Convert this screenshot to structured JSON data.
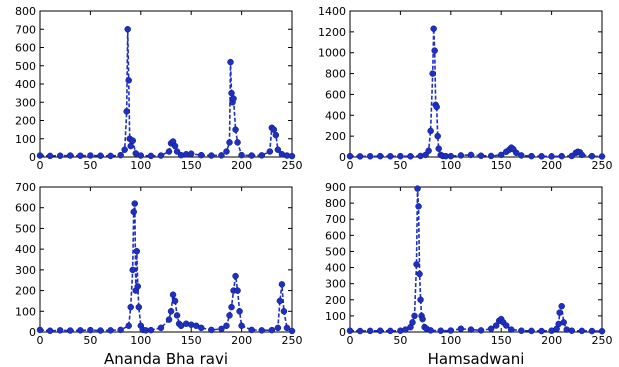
{
  "chart_data": [
    {
      "type": "line",
      "title": "",
      "xlabel": "",
      "ylabel": "",
      "xlim": [
        0,
        250
      ],
      "ylim": [
        0,
        800
      ],
      "xticks": [
        "0",
        "50",
        "100",
        "150",
        "200",
        "250"
      ],
      "yticks": [
        "0",
        "100",
        "200",
        "300",
        "400",
        "500",
        "600",
        "700",
        "800"
      ],
      "color": "#1f2fbf",
      "line_style": "dashed",
      "marker": "circle",
      "grid": false,
      "x": [
        0,
        10,
        20,
        30,
        40,
        50,
        60,
        70,
        80,
        84,
        86,
        87,
        88,
        89,
        90,
        92,
        95,
        100,
        110,
        120,
        128,
        130,
        132,
        134,
        136,
        140,
        145,
        150,
        160,
        170,
        180,
        185,
        188,
        189,
        190,
        191,
        192,
        194,
        196,
        200,
        210,
        220,
        228,
        230,
        232,
        234,
        236,
        240,
        245,
        250
      ],
      "y": [
        8,
        6,
        7,
        8,
        7,
        8,
        7,
        6,
        10,
        40,
        250,
        700,
        420,
        100,
        60,
        90,
        20,
        8,
        6,
        8,
        30,
        75,
        85,
        60,
        30,
        10,
        15,
        18,
        10,
        8,
        9,
        30,
        80,
        520,
        350,
        300,
        320,
        150,
        80,
        10,
        8,
        9,
        30,
        160,
        150,
        120,
        40,
        15,
        8,
        5
      ]
    },
    {
      "type": "line",
      "title": "",
      "xlabel": "",
      "ylabel": "",
      "xlim": [
        0,
        250
      ],
      "ylim": [
        0,
        1400
      ],
      "xticks": [
        "0",
        "50",
        "100",
        "150",
        "200",
        "250"
      ],
      "yticks": [
        "0",
        "200",
        "400",
        "600",
        "800",
        "1000",
        "1200",
        "1400"
      ],
      "color": "#1f2fbf",
      "line_style": "dashed",
      "marker": "circle",
      "grid": false,
      "x": [
        0,
        10,
        20,
        30,
        40,
        50,
        60,
        70,
        75,
        78,
        80,
        82,
        83,
        84,
        85,
        86,
        87,
        88,
        90,
        92,
        95,
        100,
        110,
        120,
        130,
        140,
        150,
        155,
        158,
        160,
        162,
        165,
        170,
        180,
        190,
        200,
        210,
        220,
        224,
        226,
        228,
        230,
        240,
        250
      ],
      "y": [
        8,
        6,
        7,
        8,
        7,
        8,
        7,
        10,
        20,
        60,
        250,
        800,
        1230,
        1020,
        500,
        480,
        200,
        80,
        20,
        10,
        8,
        8,
        15,
        20,
        12,
        10,
        20,
        50,
        70,
        90,
        75,
        40,
        15,
        8,
        7,
        6,
        8,
        10,
        40,
        50,
        45,
        20,
        8,
        5
      ]
    },
    {
      "type": "line",
      "title": "",
      "xlabel": "Ananda Bha ravi",
      "ylabel": "",
      "xlim": [
        0,
        250
      ],
      "ylim": [
        0,
        700
      ],
      "xticks": [
        "0",
        "50",
        "100",
        "150",
        "200",
        "250"
      ],
      "yticks": [
        "0",
        "100",
        "200",
        "300",
        "400",
        "500",
        "600",
        "700"
      ],
      "color": "#1f2fbf",
      "line_style": "dashed",
      "marker": "circle",
      "grid": false,
      "x": [
        0,
        10,
        20,
        30,
        40,
        50,
        60,
        70,
        80,
        88,
        90,
        92,
        93,
        94,
        95,
        96,
        97,
        98,
        100,
        102,
        105,
        110,
        120,
        128,
        130,
        132,
        134,
        136,
        138,
        140,
        145,
        150,
        155,
        160,
        170,
        180,
        185,
        188,
        190,
        192,
        194,
        196,
        198,
        200,
        210,
        220,
        230,
        236,
        238,
        240,
        242,
        245,
        250
      ],
      "y": [
        10,
        6,
        8,
        7,
        8,
        9,
        7,
        8,
        10,
        30,
        120,
        300,
        580,
        620,
        200,
        390,
        220,
        120,
        30,
        10,
        8,
        9,
        20,
        60,
        100,
        180,
        150,
        80,
        40,
        30,
        40,
        35,
        30,
        20,
        10,
        15,
        30,
        80,
        120,
        200,
        270,
        200,
        100,
        30,
        10,
        8,
        9,
        20,
        150,
        230,
        100,
        20,
        5
      ]
    },
    {
      "type": "line",
      "title": "",
      "xlabel": "Hamsadwani",
      "ylabel": "",
      "xlim": [
        0,
        250
      ],
      "ylim": [
        0,
        900
      ],
      "xticks": [
        "0",
        "50",
        "100",
        "150",
        "200",
        "250"
      ],
      "yticks": [
        "0",
        "100",
        "200",
        "300",
        "400",
        "500",
        "600",
        "700",
        "800",
        "900"
      ],
      "color": "#1f2fbf",
      "line_style": "dashed",
      "marker": "circle",
      "grid": false,
      "x": [
        0,
        10,
        20,
        30,
        40,
        50,
        55,
        60,
        62,
        64,
        66,
        67,
        68,
        69,
        70,
        71,
        72,
        74,
        76,
        80,
        90,
        100,
        110,
        120,
        130,
        140,
        145,
        148,
        150,
        152,
        155,
        160,
        170,
        180,
        190,
        200,
        205,
        207,
        208,
        210,
        212,
        215,
        220,
        230,
        240,
        250
      ],
      "y": [
        8,
        6,
        7,
        8,
        7,
        8,
        15,
        30,
        60,
        100,
        420,
        890,
        780,
        360,
        200,
        100,
        80,
        30,
        20,
        10,
        8,
        9,
        20,
        15,
        10,
        20,
        40,
        70,
        80,
        60,
        40,
        15,
        8,
        7,
        6,
        8,
        20,
        50,
        120,
        160,
        60,
        15,
        8,
        7,
        6,
        5
      ]
    }
  ]
}
